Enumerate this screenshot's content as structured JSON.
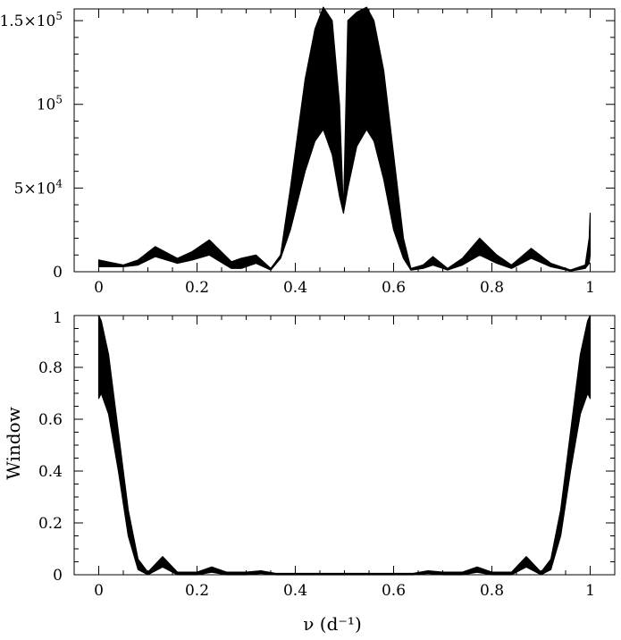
{
  "chart_data": [
    {
      "type": "area",
      "title": "",
      "xlabel": "",
      "ylabel": "",
      "xlim": [
        -0.05,
        1.05
      ],
      "ylim": [
        0,
        157000
      ],
      "grid": false,
      "xticks": [
        0,
        0.2,
        0.4,
        0.6,
        0.8,
        1
      ],
      "xtick_labels": [
        "0",
        "0.2",
        "0.4",
        "0.6",
        "0.8",
        "1"
      ],
      "yticks": [
        0,
        50000,
        100000,
        150000
      ],
      "ytick_labels": [
        {
          "mant": "0",
          "exp": ""
        },
        {
          "mant": "5×10",
          "exp": "4"
        },
        {
          "mant": "10",
          "exp": "5"
        },
        {
          "mant": "1.5×10",
          "exp": "5"
        }
      ],
      "series": [
        {
          "x": [
            0,
            0.05,
            0.08,
            0.115,
            0.16,
            0.19,
            0.225,
            0.27,
            0.29,
            0.32,
            0.35,
            0.37,
            0.39,
            0.42,
            0.44,
            0.457,
            0.475,
            0.49,
            0.498,
            0.507,
            0.525,
            0.545,
            0.56,
            0.58,
            0.6,
            0.62,
            0.635,
            0.66,
            0.68,
            0.71,
            0.74,
            0.775,
            0.81,
            0.84,
            0.88,
            0.92,
            0.96,
            0.99,
            0.998,
            1.0
          ],
          "upper": [
            7000,
            4000,
            7000,
            15000,
            8000,
            12000,
            19000,
            6000,
            8000,
            10000,
            2000,
            10000,
            50000,
            115000,
            145000,
            158000,
            150000,
            100000,
            35000,
            150000,
            155000,
            158000,
            150000,
            120000,
            70000,
            20000,
            2000,
            4000,
            9000,
            2000,
            8000,
            20000,
            10000,
            4000,
            14000,
            5000,
            1000,
            4000,
            20000,
            35000
          ],
          "lower": [
            3000,
            3000,
            4000,
            9000,
            5000,
            7000,
            10000,
            2000,
            2000,
            5000,
            1000,
            8000,
            25000,
            60000,
            78000,
            85000,
            70000,
            45000,
            35000,
            50000,
            75000,
            85000,
            78000,
            55000,
            25000,
            8000,
            1000,
            2000,
            4000,
            1000,
            4000,
            10000,
            5000,
            2000,
            8000,
            3000,
            500,
            2000,
            5000,
            10000
          ]
        }
      ]
    },
    {
      "type": "area",
      "title": "",
      "xlabel": "ν (d⁻¹)",
      "ylabel": "Window",
      "xlim": [
        -0.05,
        1.05
      ],
      "ylim": [
        0,
        1
      ],
      "grid": false,
      "xticks": [
        0,
        0.2,
        0.4,
        0.6,
        0.8,
        1
      ],
      "xtick_labels": [
        "0",
        "0.2",
        "0.4",
        "0.6",
        "0.8",
        "1"
      ],
      "yticks": [
        0,
        0.2,
        0.4,
        0.6,
        0.8,
        1
      ],
      "ytick_labels": [
        {
          "mant": "0",
          "exp": ""
        },
        {
          "mant": "0.2",
          "exp": ""
        },
        {
          "mant": "0.4",
          "exp": ""
        },
        {
          "mant": "0.6",
          "exp": ""
        },
        {
          "mant": "0.8",
          "exp": ""
        },
        {
          "mant": "1",
          "exp": ""
        }
      ],
      "series": [
        {
          "x": [
            0,
            0.005,
            0.02,
            0.04,
            0.06,
            0.08,
            0.1,
            0.13,
            0.16,
            0.2,
            0.23,
            0.26,
            0.3,
            0.33,
            0.36,
            0.5,
            0.64,
            0.67,
            0.7,
            0.74,
            0.77,
            0.8,
            0.84,
            0.87,
            0.9,
            0.92,
            0.94,
            0.96,
            0.98,
            0.995,
            1.0
          ],
          "upper": [
            1.0,
            0.98,
            0.85,
            0.55,
            0.25,
            0.06,
            0.01,
            0.07,
            0.01,
            0.01,
            0.03,
            0.01,
            0.01,
            0.015,
            0.005,
            0.005,
            0.005,
            0.015,
            0.01,
            0.01,
            0.03,
            0.01,
            0.01,
            0.07,
            0.01,
            0.06,
            0.25,
            0.55,
            0.85,
            0.98,
            1.0
          ],
          "lower": [
            0.68,
            0.7,
            0.62,
            0.4,
            0.15,
            0.02,
            0.0,
            0.03,
            0.0,
            0.0,
            0.01,
            0.0,
            0.0,
            0.005,
            0.0,
            0.0,
            0.0,
            0.005,
            0.0,
            0.0,
            0.01,
            0.0,
            0.0,
            0.03,
            0.0,
            0.02,
            0.15,
            0.4,
            0.62,
            0.7,
            0.68
          ]
        }
      ]
    }
  ]
}
